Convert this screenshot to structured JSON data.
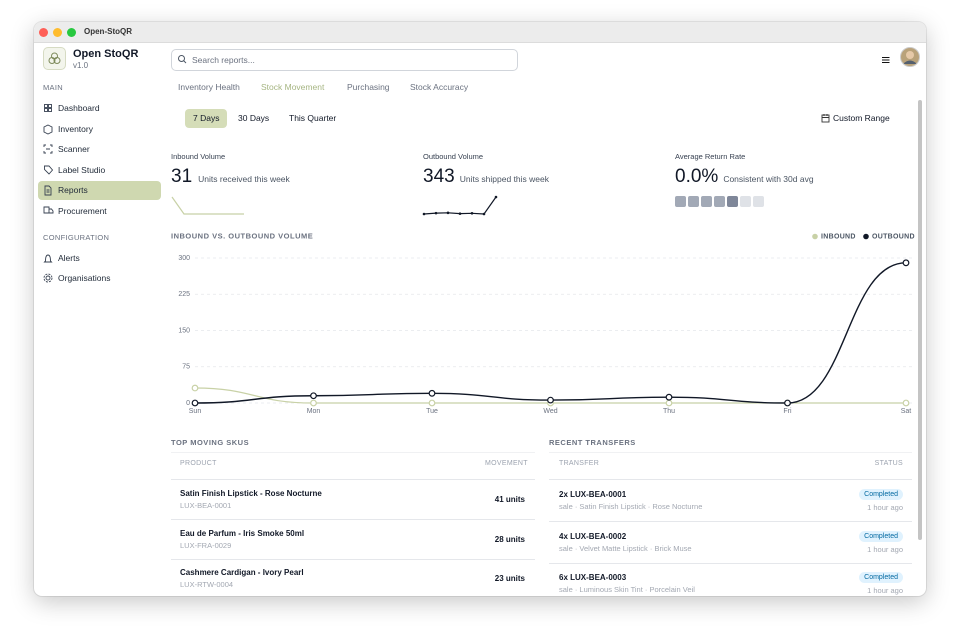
{
  "window": {
    "title": "Open-StoQR"
  },
  "sidebar": {
    "app_name": "Open StoQR",
    "version": "v1.0",
    "sections": [
      {
        "label": "MAIN",
        "items": [
          "Dashboard",
          "Inventory",
          "Scanner",
          "Label Studio",
          "Reports",
          "Procurement"
        ]
      },
      {
        "label": "CONFIGURATION",
        "items": [
          "Alerts",
          "Organisations"
        ]
      }
    ]
  },
  "search": {
    "placeholder": "Search reports..."
  },
  "tabs": [
    "Inventory Health",
    "Stock Movement",
    "Purchasing",
    "Stock Accuracy"
  ],
  "ranges": [
    "7 Days",
    "30 Days",
    "This Quarter"
  ],
  "custom_range": "Custom Range",
  "kpis": [
    {
      "label": "Inbound Volume",
      "value": 31,
      "note": "Units received this week"
    },
    {
      "label": "Outbound Volume",
      "value": 343,
      "note": "Units shipped this week"
    },
    {
      "label": "Average Return Rate",
      "value": "0.0%",
      "note": "Consistent with 30d avg"
    }
  ],
  "chart_data": {
    "type": "line",
    "title": "INBOUND VS. OUTBOUND VOLUME",
    "categories": [
      "Sun",
      "Mon",
      "Tue",
      "Wed",
      "Thu",
      "Fri",
      "Sat"
    ],
    "series": [
      {
        "name": "INBOUND",
        "color": "#c8d1a6",
        "values": [
          31,
          0,
          0,
          0,
          0,
          0,
          0
        ]
      },
      {
        "name": "OUTBOUND",
        "color": "#111827",
        "values": [
          0,
          15,
          20,
          6,
          12,
          0,
          290
        ]
      }
    ],
    "ylim": [
      0,
      300
    ],
    "yticks": [
      0,
      75,
      150,
      225,
      300
    ],
    "grid": true
  },
  "top_skus": {
    "title": "TOP MOVING SKUS",
    "columns": [
      "PRODUCT",
      "MOVEMENT"
    ],
    "rows": [
      {
        "name": "Satin Finish Lipstick - Rose Nocturne",
        "sku": "LUX-BEA-0001",
        "movement": "41 units"
      },
      {
        "name": "Eau de Parfum - Iris Smoke 50ml",
        "sku": "LUX-FRA-0029",
        "movement": "28 units"
      },
      {
        "name": "Cashmere Cardigan - Ivory Pearl",
        "sku": "LUX-RTW-0004",
        "movement": "23 units"
      }
    ]
  },
  "transfers": {
    "title": "RECENT TRANSFERS",
    "columns": [
      "TRANSFER",
      "STATUS"
    ],
    "rows": [
      {
        "title": "2x LUX-BEA-0001",
        "detail": "sale · Satin Finish Lipstick · Rose Nocturne",
        "status": "Completed",
        "time": "1 hour ago"
      },
      {
        "title": "4x LUX-BEA-0002",
        "detail": "sale · Velvet Matte Lipstick · Brick Muse",
        "status": "Completed",
        "time": "1 hour ago"
      },
      {
        "title": "6x LUX-BEA-0003",
        "detail": "sale · Luminous Skin Tint · Porcelain Veil",
        "status": "Completed",
        "time": "1 hour ago"
      }
    ]
  }
}
